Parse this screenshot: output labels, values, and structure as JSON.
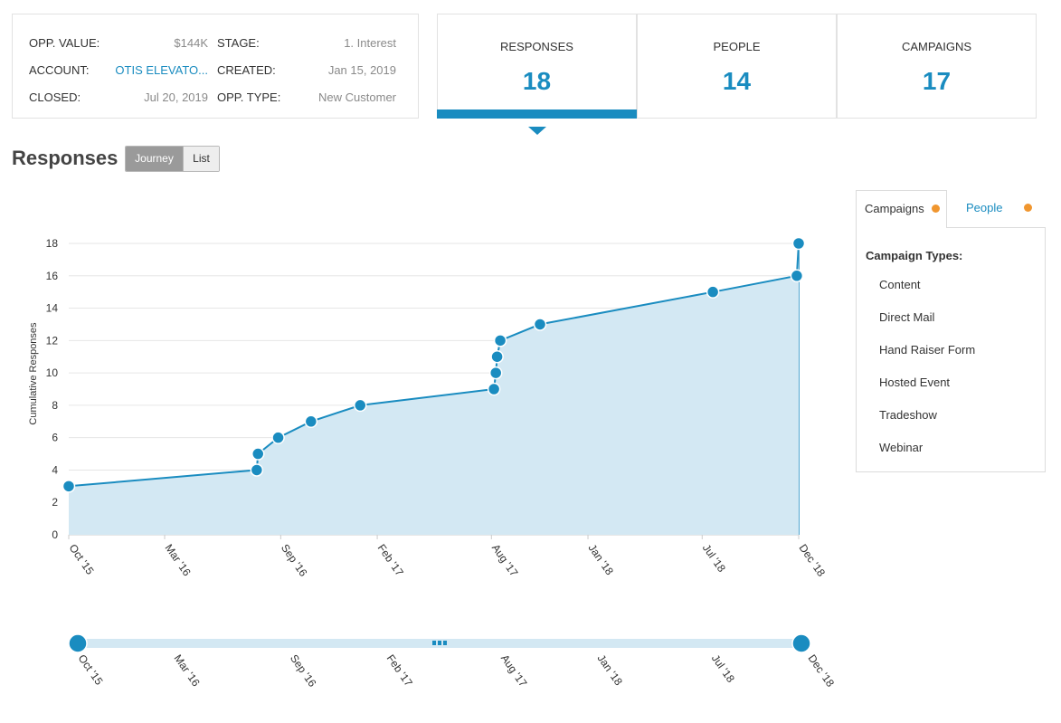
{
  "opportunity": {
    "rows": [
      {
        "label1": "OPP. VALUE:",
        "value1": "$144K",
        "label2": "STAGE:",
        "value2": "1. Interest"
      },
      {
        "label1": "ACCOUNT:",
        "value1": "OTIS ELEVATO...",
        "label2": "CREATED:",
        "value2": "Jan 15, 2019"
      },
      {
        "label1": "CLOSED:",
        "value1": "Jul 20, 2019",
        "label2": "OPP. TYPE:",
        "value2": "New Customer"
      }
    ]
  },
  "stats": [
    {
      "label": "RESPONSES",
      "value": "18"
    },
    {
      "label": "PEOPLE",
      "value": "14"
    },
    {
      "label": "CAMPAIGNS",
      "value": "17"
    }
  ],
  "section": {
    "title": "Responses",
    "toggle_journey": "Journey",
    "toggle_list": "List"
  },
  "filter": {
    "tab_campaigns": "Campaigns",
    "tab_people": "People",
    "title": "Campaign Types:",
    "items": [
      "Content",
      "Direct Mail",
      "Hand Raiser Form",
      "Hosted Event",
      "Tradeshow",
      "Webinar"
    ]
  },
  "colors": {
    "accent": "#1a8cc0",
    "area_fill": "#d3e8f3",
    "dot_orange": "#f0962f"
  },
  "chart_data": {
    "type": "area",
    "ylabel": "Cumulative Responses",
    "xlabel": "",
    "ylim": [
      0,
      18
    ],
    "yticks": [
      0,
      2,
      4,
      6,
      8,
      10,
      12,
      14,
      16,
      18
    ],
    "xlim": [
      "2015-10-01",
      "2018-12-01"
    ],
    "xticks": [
      {
        "date": "2015-10-01",
        "label": "Oct '15"
      },
      {
        "date": "2016-03-01",
        "label": "Mar '16"
      },
      {
        "date": "2016-09-01",
        "label": "Sep '16"
      },
      {
        "date": "2017-02-01",
        "label": "Feb '17"
      },
      {
        "date": "2017-08-01",
        "label": "Aug '17"
      },
      {
        "date": "2018-01-01",
        "label": "Jan '18"
      },
      {
        "date": "2018-07-01",
        "label": "Jul '18"
      },
      {
        "date": "2018-12-01",
        "label": "Dec '18"
      }
    ],
    "points": [
      {
        "x": "2015-10-01",
        "y": 3
      },
      {
        "x": "2016-07-25",
        "y": 4
      },
      {
        "x": "2016-07-27",
        "y": 5
      },
      {
        "x": "2016-08-28",
        "y": 6
      },
      {
        "x": "2016-10-19",
        "y": 7
      },
      {
        "x": "2017-01-05",
        "y": 8
      },
      {
        "x": "2017-08-05",
        "y": 9
      },
      {
        "x": "2017-08-08",
        "y": 10
      },
      {
        "x": "2017-08-10",
        "y": 11
      },
      {
        "x": "2017-08-15",
        "y": 12
      },
      {
        "x": "2017-10-17",
        "y": 13
      },
      {
        "x": "2018-07-18",
        "y": 15
      },
      {
        "x": "2018-11-28",
        "y": 16
      },
      {
        "x": "2018-12-01",
        "y": 18
      }
    ],
    "grid": true,
    "range_selector": {
      "start": "2015-10-01",
      "end": "2018-12-01"
    }
  }
}
